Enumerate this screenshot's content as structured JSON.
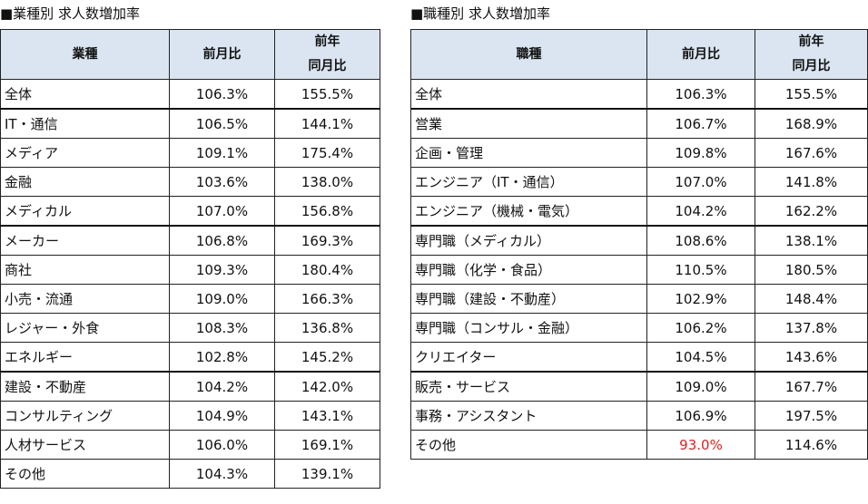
{
  "left": {
    "title": "■業種別 求人数増加率",
    "headers": {
      "category": "業種",
      "mom": "前月比",
      "yoy_line1": "前年",
      "yoy_line2": "同月比"
    },
    "rows": [
      {
        "label": "全体",
        "mom": "106.3%",
        "yoy": "155.5%"
      },
      {
        "label": "IT・通信",
        "mom": "106.5%",
        "yoy": "144.1%"
      },
      {
        "label": "メディア",
        "mom": "109.1%",
        "yoy": "175.4%"
      },
      {
        "label": "金融",
        "mom": "103.6%",
        "yoy": "138.0%"
      },
      {
        "label": "メディカル",
        "mom": "107.0%",
        "yoy": "156.8%"
      },
      {
        "label": "メーカー",
        "mom": "106.8%",
        "yoy": "169.3%"
      },
      {
        "label": "商社",
        "mom": "109.3%",
        "yoy": "180.4%"
      },
      {
        "label": "小売・流通",
        "mom": "109.0%",
        "yoy": "166.3%"
      },
      {
        "label": "レジャー・外食",
        "mom": "108.3%",
        "yoy": "136.8%"
      },
      {
        "label": "エネルギー",
        "mom": "102.8%",
        "yoy": "145.2%"
      },
      {
        "label": "建設・不動産",
        "mom": "104.2%",
        "yoy": "142.0%"
      },
      {
        "label": "コンサルティング",
        "mom": "104.9%",
        "yoy": "143.1%"
      },
      {
        "label": "人材サービス",
        "mom": "106.0%",
        "yoy": "169.1%"
      },
      {
        "label": "その他",
        "mom": "104.3%",
        "yoy": "139.1%"
      }
    ]
  },
  "right": {
    "title": "■職種別 求人数増加率",
    "headers": {
      "category": "職種",
      "mom": "前月比",
      "yoy_line1": "前年",
      "yoy_line2": "同月比"
    },
    "rows": [
      {
        "label": "全体",
        "mom": "106.3%",
        "yoy": "155.5%"
      },
      {
        "label": "営業",
        "mom": "106.7%",
        "yoy": "168.9%"
      },
      {
        "label": "企画・管理",
        "mom": "109.8%",
        "yoy": "167.6%"
      },
      {
        "label": "エンジニア（IT・通信）",
        "mom": "107.0%",
        "yoy": "141.8%"
      },
      {
        "label": "エンジニア（機械・電気）",
        "mom": "104.2%",
        "yoy": "162.2%"
      },
      {
        "label": "専門職（メディカル）",
        "mom": "108.6%",
        "yoy": "138.1%"
      },
      {
        "label": "専門職（化学・食品）",
        "mom": "110.5%",
        "yoy": "180.5%"
      },
      {
        "label": "専門職（建設・不動産）",
        "mom": "102.9%",
        "yoy": "148.4%"
      },
      {
        "label": "専門職（コンサル・金融）",
        "mom": "106.2%",
        "yoy": "137.8%"
      },
      {
        "label": "クリエイター",
        "mom": "104.5%",
        "yoy": "143.6%"
      },
      {
        "label": "販売・サービス",
        "mom": "109.0%",
        "yoy": "167.7%"
      },
      {
        "label": "事務・アシスタント",
        "mom": "106.9%",
        "yoy": "197.5%"
      },
      {
        "label": "その他",
        "mom": "93.0%",
        "yoy": "114.6%"
      }
    ]
  },
  "colors": {
    "header_bg": "#dbe5f1",
    "negative_highlight": "#e02020"
  }
}
